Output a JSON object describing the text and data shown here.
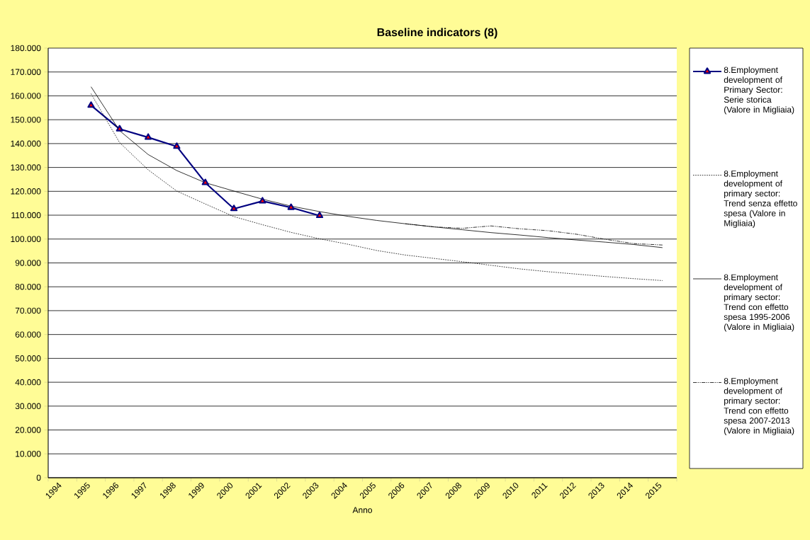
{
  "chart_data": {
    "type": "line",
    "title": "Baseline indicators (8)",
    "xlabel": "Anno",
    "categories": [
      "1994",
      "1995",
      "1996",
      "1997",
      "1998",
      "1999",
      "2000",
      "2001",
      "2002",
      "2003",
      "2004",
      "2005",
      "2006",
      "2007",
      "2008",
      "2009",
      "2010",
      "2011",
      "2012",
      "2013",
      "2014",
      "2015"
    ],
    "series": [
      {
        "name": "8.Employment development of Primary Sector: Serie storica (Valore in Migliaia)",
        "color": "#000080",
        "marker": "triangle",
        "line_style": "solid",
        "values": [
          null,
          156000,
          146100,
          142600,
          138800,
          123600,
          112700,
          115900,
          113200,
          109800,
          null,
          null,
          null,
          null,
          null,
          null,
          null,
          null,
          null,
          null,
          null,
          null
        ]
      },
      {
        "name": "8.Employment development of primary sector: Trend senza effetto spesa (Valore in Migliaia)",
        "color": "#000000",
        "marker": "none",
        "line_style": "dotted",
        "values": [
          null,
          160900,
          140400,
          129000,
          120100,
          114700,
          109400,
          106000,
          102800,
          100100,
          97800,
          95200,
          93300,
          91900,
          90500,
          89000,
          87500,
          86300,
          85300,
          84300,
          83400,
          82600
        ]
      },
      {
        "name": "8.Employment development of primary sector: Trend con effetto spesa 1995-2006 (Valore in Migliaia)",
        "color": "#000000",
        "marker": "none",
        "line_style": "solid",
        "values": [
          null,
          163800,
          145400,
          135400,
          128700,
          123600,
          120100,
          116700,
          113800,
          111500,
          109500,
          107800,
          106400,
          105100,
          103900,
          102700,
          101700,
          100600,
          99600,
          98700,
          97700,
          96400
        ]
      },
      {
        "name": "8.Employment development of primary sector: Trend con effetto spesa  2007-2013 (Valore in Migliaia)",
        "color": "#000000",
        "marker": "none",
        "line_style": "dashdot",
        "values": [
          null,
          null,
          null,
          null,
          null,
          null,
          null,
          null,
          null,
          null,
          null,
          null,
          106400,
          105100,
          104500,
          105500,
          104300,
          103500,
          102000,
          99900,
          98100,
          97500
        ]
      }
    ],
    "ylim": [
      0,
      180000
    ],
    "yticks": [
      {
        "value": 0,
        "label": "0"
      },
      {
        "value": 10000,
        "label": "10.000"
      },
      {
        "value": 20000,
        "label": "20.000"
      },
      {
        "value": 30000,
        "label": "30.000"
      },
      {
        "value": 40000,
        "label": "40.000"
      },
      {
        "value": 50000,
        "label": "50.000"
      },
      {
        "value": 60000,
        "label": "60.000"
      },
      {
        "value": 70000,
        "label": "70.000"
      },
      {
        "value": 80000,
        "label": "80.000"
      },
      {
        "value": 90000,
        "label": "90.000"
      },
      {
        "value": 100000,
        "label": "100.000"
      },
      {
        "value": 110000,
        "label": "110.000"
      },
      {
        "value": 120000,
        "label": "120.000"
      },
      {
        "value": 130000,
        "label": "130.000"
      },
      {
        "value": 140000,
        "label": "140.000"
      },
      {
        "value": 150000,
        "label": "150.000"
      },
      {
        "value": 160000,
        "label": "160.000"
      },
      {
        "value": 170000,
        "label": "170.000"
      },
      {
        "value": 180000,
        "label": "180.000"
      }
    ],
    "grid": "y",
    "legend": "right"
  }
}
